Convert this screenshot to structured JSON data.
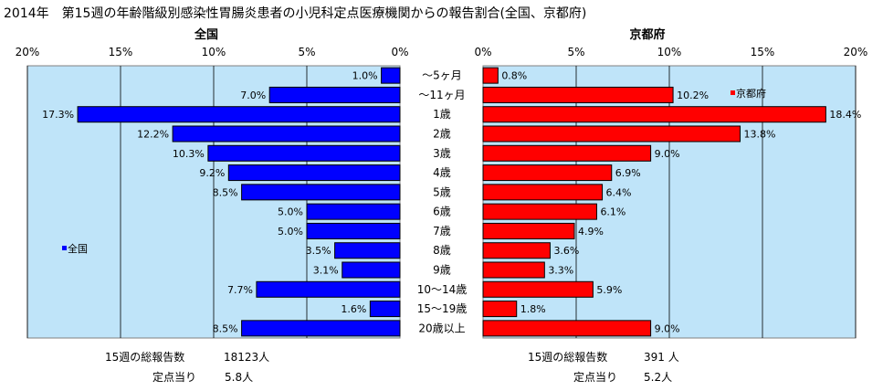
{
  "title": "2014年　第15週の年齢階級別感染性胃腸炎患者の小児科定点医療機関からの報告割合(全国、京都府)",
  "footer": {
    "left_total_label": "15週の総報告数",
    "left_total_value": "18123人",
    "left_per_label": "定点当り",
    "left_per_value": "5.8人",
    "right_total_label": "15週の総報告数",
    "right_total_value": "391 人",
    "right_per_label": "定点当り",
    "right_per_value": "5.2人"
  },
  "chart_data": {
    "type": "bar",
    "categories": [
      "～5ヶ月",
      "～11ヶ月",
      "1歳",
      "2歳",
      "3歳",
      "4歳",
      "5歳",
      "6歳",
      "7歳",
      "8歳",
      "9歳",
      "10～14歳",
      "15～19歳",
      "20歳以上"
    ],
    "panels": [
      {
        "title": "全国",
        "legend": "全国",
        "color": "#0000ff",
        "direction": "reversed",
        "xlim": [
          0,
          20
        ],
        "ticks": [
          "0%",
          "5%",
          "10%",
          "15%",
          "20%"
        ],
        "values": [
          1.0,
          7.0,
          17.3,
          12.2,
          10.3,
          9.2,
          8.5,
          5.0,
          5.0,
          3.5,
          3.1,
          7.7,
          1.6,
          8.5
        ],
        "labels": [
          "1.0%",
          "7.0%",
          "17.3%",
          "12.2%",
          "10.3%",
          "9.2%",
          "8.5%",
          "5.0%",
          "5.0%",
          "3.5%",
          "3.1%",
          "7.7%",
          "1.6%",
          "8.5%"
        ]
      },
      {
        "title": "京都府",
        "legend": "京都府",
        "color": "#ff0000",
        "direction": "normal",
        "xlim": [
          0,
          20
        ],
        "ticks": [
          "0%",
          "5%",
          "10%",
          "15%",
          "20%"
        ],
        "values": [
          0.8,
          10.2,
          18.4,
          13.8,
          9.0,
          6.9,
          6.4,
          6.1,
          4.9,
          3.6,
          3.3,
          5.9,
          1.8,
          9.0
        ],
        "labels": [
          "0.8%",
          "10.2%",
          "18.4%",
          "13.8%",
          "9.0%",
          "6.9%",
          "6.4%",
          "6.1%",
          "4.9%",
          "3.6%",
          "3.3%",
          "5.9%",
          "1.8%",
          "9.0%"
        ]
      }
    ]
  }
}
